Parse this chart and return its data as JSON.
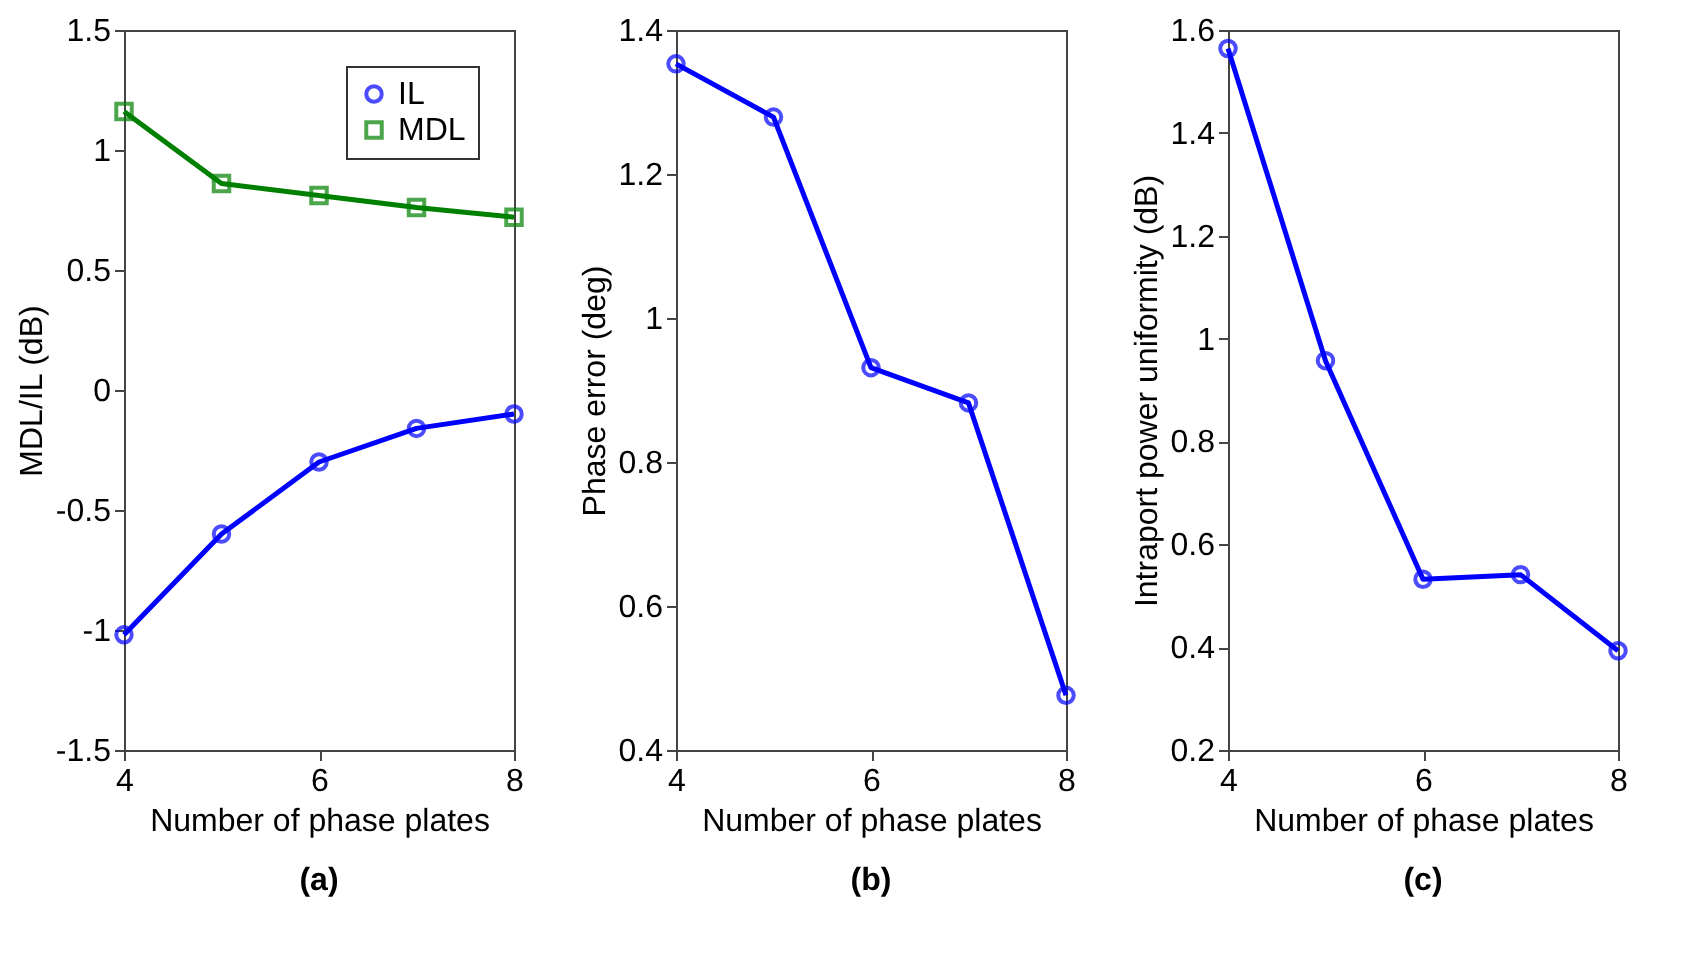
{
  "chart_data": [
    {
      "type": "line",
      "xlabel": "Number of phase plates",
      "ylabel": "MDL/IL (dB)",
      "annotations": [
        "(a)"
      ],
      "x": [
        4,
        5,
        6,
        7,
        8
      ],
      "xlim": [
        4,
        8
      ],
      "xticks": [
        4,
        6,
        8
      ],
      "ylim": [
        -1.5,
        1.5
      ],
      "yticks": [
        -1.5,
        -1,
        -0.5,
        0,
        0.5,
        1,
        1.5
      ],
      "grid": false,
      "legend": "top right",
      "line_style": "solid",
      "series": [
        {
          "name": "IL",
          "color": "#0000ff",
          "marker": "circle",
          "values": [
            -1.02,
            -0.6,
            -0.3,
            -0.16,
            -0.1
          ]
        },
        {
          "name": "MDL",
          "color": "#008000",
          "marker": "square",
          "values": [
            1.16,
            0.86,
            0.81,
            0.76,
            0.72
          ]
        }
      ]
    },
    {
      "type": "line",
      "xlabel": "Number of phase plates",
      "ylabel": "Phase error (deg)",
      "annotations": [
        "(b)"
      ],
      "x": [
        4,
        5,
        6,
        7,
        8
      ],
      "xlim": [
        4,
        8
      ],
      "xticks": [
        4,
        6,
        8
      ],
      "ylim": [
        0.4,
        1.4
      ],
      "yticks": [
        0.4,
        0.6,
        0.8,
        1,
        1.2,
        1.4
      ],
      "grid": false,
      "line_style": "solid",
      "series": [
        {
          "color": "#0000ff",
          "marker": "circle",
          "values": [
            1.353,
            1.279,
            0.931,
            0.882,
            0.476
          ]
        }
      ]
    },
    {
      "type": "line",
      "xlabel": "Number of phase plates",
      "ylabel": "Intraport power uniformity (dB)",
      "annotations": [
        "(c)"
      ],
      "x": [
        4,
        5,
        6,
        7,
        8
      ],
      "xlim": [
        4,
        8
      ],
      "xticks": [
        4,
        6,
        8
      ],
      "ylim": [
        0.2,
        1.6
      ],
      "yticks": [
        0.2,
        0.4,
        0.6,
        0.8,
        1,
        1.2,
        1.4,
        1.6
      ],
      "grid": false,
      "line_style": "solid",
      "series": [
        {
          "color": "#0000ff",
          "marker": "circle",
          "values": [
            1.564,
            0.957,
            0.532,
            0.541,
            0.393
          ]
        }
      ]
    }
  ]
}
